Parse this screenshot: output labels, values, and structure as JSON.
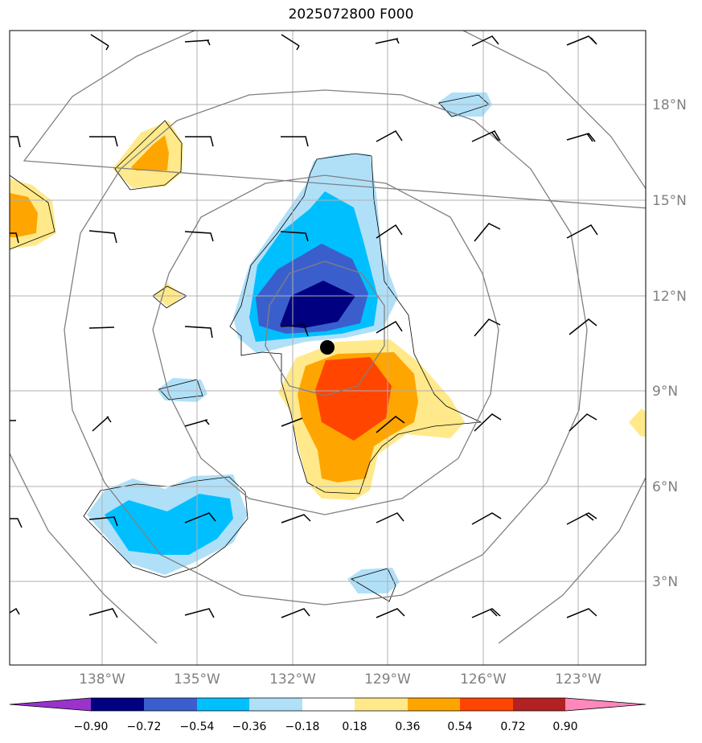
{
  "title": "2025072800 F000",
  "map": {
    "lon_labels": [
      "138°W",
      "135°W",
      "132°W",
      "129°W",
      "126°W",
      "123°W"
    ],
    "lat_labels": [
      "18°N",
      "15°N",
      "12°N",
      "9°N",
      "6°N",
      "3°N"
    ],
    "center_marker": "filled-black-circle"
  },
  "colorbar": {
    "ticks": [
      "−0.90",
      "−0.72",
      "−0.54",
      "−0.36",
      "−0.18",
      "0.18",
      "0.36",
      "0.54",
      "0.72",
      "0.90"
    ],
    "colors": [
      "#9933cc",
      "#000080",
      "#3a5fcd",
      "#00bfff",
      "#b0e0f8",
      "#ffffff",
      "#ffe98a",
      "#ffa500",
      "#ff4500",
      "#b22222",
      "#ff88bb"
    ]
  },
  "fill_colors": {
    "neg1": "#b0e0f8",
    "neg2": "#00bfff",
    "neg3": "#3a5fcd",
    "neg4": "#000080",
    "pos1": "#ffe98a",
    "pos2": "#ffa500",
    "pos3": "#ff4500"
  }
}
